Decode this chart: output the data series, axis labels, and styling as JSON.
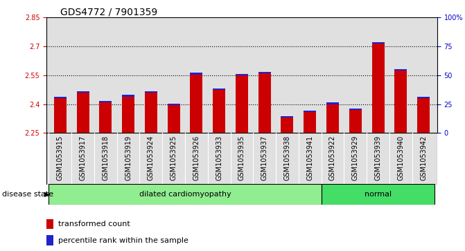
{
  "title": "GDS4772 / 7901359",
  "samples": [
    "GSM1053915",
    "GSM1053917",
    "GSM1053918",
    "GSM1053919",
    "GSM1053924",
    "GSM1053925",
    "GSM1053926",
    "GSM1053933",
    "GSM1053935",
    "GSM1053937",
    "GSM1053938",
    "GSM1053941",
    "GSM1053922",
    "GSM1053929",
    "GSM1053939",
    "GSM1053940",
    "GSM1053942"
  ],
  "red_values": [
    2.43,
    2.46,
    2.41,
    2.44,
    2.46,
    2.395,
    2.555,
    2.475,
    2.55,
    2.56,
    2.33,
    2.36,
    2.4,
    2.37,
    2.715,
    2.575,
    2.43
  ],
  "blue_heights": [
    0.008,
    0.008,
    0.008,
    0.008,
    0.008,
    0.008,
    0.008,
    0.008,
    0.008,
    0.008,
    0.008,
    0.008,
    0.008,
    0.008,
    0.008,
    0.008,
    0.008
  ],
  "ymin": 2.25,
  "ymax": 2.85,
  "yticks": [
    2.25,
    2.4,
    2.55,
    2.7,
    2.85
  ],
  "right_ytick_values": [
    0,
    25,
    50,
    75,
    100
  ],
  "right_ytick_labels": [
    "0",
    "25",
    "50",
    "75",
    "100%"
  ],
  "dotted_lines": [
    2.4,
    2.55,
    2.7
  ],
  "dc_color": "#90EE90",
  "normal_color": "#44DD66",
  "bar_width": 0.55,
  "red_color": "#CC0000",
  "blue_color": "#2222CC",
  "bg_color": "#E0E0E0",
  "axis_color_left": "#CC0000",
  "axis_color_right": "#0000CC",
  "title_fontsize": 10,
  "tick_fontsize": 7,
  "legend_fontsize": 8,
  "group_label_fontsize": 8,
  "disease_state_fontsize": 8
}
